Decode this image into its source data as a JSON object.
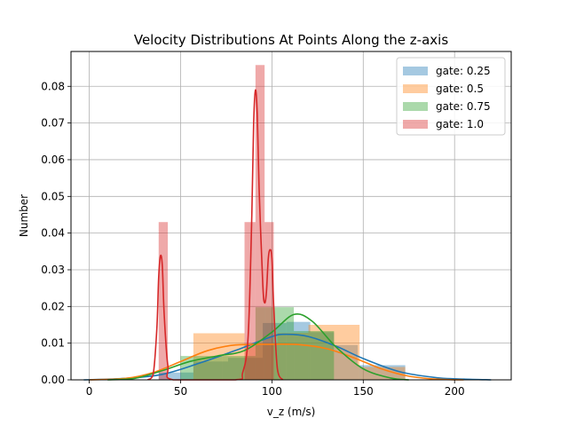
{
  "chart_data": {
    "type": "bar",
    "title": "Velocity Distributions At Points Along the z-axis",
    "xlabel": "v_z (m/s)",
    "ylabel": "Number",
    "xlim": [
      -10,
      231
    ],
    "ylim": [
      0,
      0.0895
    ],
    "xticks": [
      0,
      50,
      100,
      150,
      200
    ],
    "yticks": [
      0.0,
      0.01,
      0.02,
      0.03,
      0.04,
      0.05,
      0.06,
      0.07,
      0.08
    ],
    "grid": true,
    "legend_position": "top-right",
    "series": [
      {
        "name": "gate: 0.25",
        "color": "#1f77b4",
        "bars": [
          [
            -3,
            20,
            0
          ],
          [
            20,
            38,
            0
          ],
          [
            38,
            57,
            0.002
          ],
          [
            57,
            76,
            0.005
          ],
          [
            76,
            95,
            0.006
          ],
          [
            95,
            108,
            0.0155
          ],
          [
            108,
            121,
            0.0158
          ],
          [
            121,
            134,
            0.013
          ],
          [
            134,
            147,
            0.0095
          ],
          [
            147,
            173,
            0.004
          ]
        ],
        "curve": [
          [
            -3,
            0.0
          ],
          [
            20,
            0.0004
          ],
          [
            40,
            0.0015
          ],
          [
            60,
            0.0045
          ],
          [
            80,
            0.008
          ],
          [
            100,
            0.0118
          ],
          [
            108,
            0.0124
          ],
          [
            120,
            0.0118
          ],
          [
            135,
            0.0092
          ],
          [
            150,
            0.0058
          ],
          [
            170,
            0.0022
          ],
          [
            190,
            0.0006
          ],
          [
            205,
            0.0002
          ],
          [
            220,
            0.0
          ]
        ]
      },
      {
        "name": "gate: 0.5",
        "color": "#ff7f0e",
        "bars": [
          [
            57,
            85,
            0.0127
          ],
          [
            85,
            103,
            0.0095
          ],
          [
            103,
            120,
            0.0128
          ],
          [
            120,
            148,
            0.015
          ],
          [
            148,
            173,
            0.0035
          ]
        ],
        "curve": [
          [
            0,
            0.0
          ],
          [
            20,
            0.0004
          ],
          [
            35,
            0.002
          ],
          [
            50,
            0.005
          ],
          [
            65,
            0.008
          ],
          [
            80,
            0.0095
          ],
          [
            100,
            0.0097
          ],
          [
            115,
            0.0096
          ],
          [
            130,
            0.0085
          ],
          [
            145,
            0.006
          ],
          [
            160,
            0.003
          ],
          [
            175,
            0.001
          ],
          [
            190,
            0.0002
          ],
          [
            205,
            0.0
          ]
        ]
      },
      {
        "name": "gate: 0.75",
        "color": "#2ca02c",
        "bars": [
          [
            50,
            73,
            0.0065
          ],
          [
            73,
            91,
            0.0065
          ],
          [
            91,
            112,
            0.0198
          ],
          [
            112,
            134,
            0.0133
          ],
          [
            134,
            150,
            0.0
          ]
        ],
        "curve": [
          [
            10,
            0.0
          ],
          [
            25,
            0.0004
          ],
          [
            40,
            0.0025
          ],
          [
            55,
            0.005
          ],
          [
            70,
            0.0065
          ],
          [
            85,
            0.008
          ],
          [
            100,
            0.013
          ],
          [
            112,
            0.0178
          ],
          [
            122,
            0.016
          ],
          [
            135,
            0.009
          ],
          [
            150,
            0.003
          ],
          [
            165,
            0.0005
          ],
          [
            175,
            0.0
          ]
        ]
      },
      {
        "name": "gate: 1.0",
        "color": "#d62728",
        "bars": [
          [
            38,
            43,
            0.043
          ],
          [
            85,
            91,
            0.043
          ],
          [
            91,
            96,
            0.0858
          ],
          [
            96,
            101,
            0.043
          ]
        ],
        "curve": [
          [
            32,
            0.0
          ],
          [
            35,
            0.0015
          ],
          [
            37,
            0.014
          ],
          [
            38,
            0.028
          ],
          [
            39,
            0.0338
          ],
          [
            40,
            0.031
          ],
          [
            41,
            0.018
          ],
          [
            43,
            0.004
          ],
          [
            46,
            0.0
          ],
          [
            80,
            0.0
          ],
          [
            84,
            0.002
          ],
          [
            87,
            0.012
          ],
          [
            89,
            0.045
          ],
          [
            90,
            0.07
          ],
          [
            91,
            0.079
          ],
          [
            92,
            0.072
          ],
          [
            93,
            0.052
          ],
          [
            95,
            0.026
          ],
          [
            96,
            0.021
          ],
          [
            97,
            0.024
          ],
          [
            98,
            0.033
          ],
          [
            99,
            0.0355
          ],
          [
            100,
            0.033
          ],
          [
            101,
            0.02
          ],
          [
            103,
            0.003
          ],
          [
            106,
            0.0
          ]
        ]
      }
    ]
  }
}
